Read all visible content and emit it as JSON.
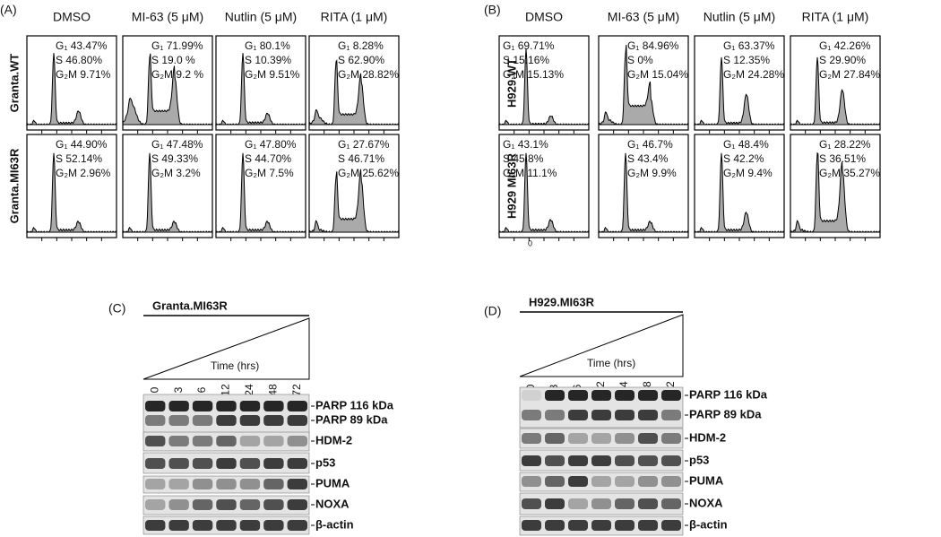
{
  "panels": [
    {
      "label": "(A)",
      "columns": [
        "DMSO",
        "MI-63 (5 μM)",
        "Nutlin (5 μM)",
        "RITA (1 μM)"
      ],
      "rows": [
        {
          "label": "Granta.WT",
          "cells": [
            [
              "G₁ 43.47%",
              "S 46.80%",
              "G₂M 9.71%"
            ],
            [
              "G₁ 71.99%",
              "S 19.0 %",
              "G₂M 9.2 %"
            ],
            [
              "G₁ 80.1%",
              "S 10.39%",
              "G₂M 9.51%"
            ],
            [
              "G₁ 8.28%",
              "S 62.90%",
              "G₂M 28.82%"
            ]
          ]
        },
        {
          "label": "Granta.MI63R",
          "cells": [
            [
              "G₁ 44.90%",
              "S 52.14%",
              "G₂M 2.96%"
            ],
            [
              "G₁ 47.48%",
              "S 49.33%",
              "G₂M 3.2%"
            ],
            [
              "G₁ 47.80%",
              "S 44.70%",
              "G₂M 7.5%"
            ],
            [
              "G₁ 27.67%",
              "S 46.71%",
              "G₂M 25.62%"
            ]
          ]
        }
      ]
    },
    {
      "label": "(B)",
      "columns": [
        "DMSO",
        "MI-63 (5 μM)",
        "Nutlin (5 μM)",
        "RITA (1 μM)"
      ],
      "rows": [
        {
          "label": "H929.WT",
          "cells": [
            [
              "G₁ 69.71%",
              "S 15.16%",
              "G₂M 15.13%"
            ],
            [
              "G₁ 84.96%",
              "S 0%",
              "G₂M 15.04%"
            ],
            [
              "G₁ 63.37%",
              "S 12.35%",
              "G₂M 24.28%"
            ],
            [
              "G₁ 42.26%",
              "S 29.90%",
              "G₂M 27.84%"
            ]
          ]
        },
        {
          "label": "H929 MI63R",
          "cells": [
            [
              "G₁ 43.1%",
              "S 45.8%",
              "G₂M 11.1%"
            ],
            [
              "G₁ 46.7%",
              "S 43.4%",
              "G₂M 9.9%"
            ],
            [
              "G₁ 48.4%",
              "S 42.2%",
              "G₂M 9.4%"
            ],
            [
              "G₁ 28.22%",
              "S 36.51%",
              "G₂M 35.27%"
            ]
          ]
        }
      ]
    }
  ],
  "axis_note": "0",
  "blots": [
    {
      "label": "(C)",
      "cell_line": "Granta.MI63R",
      "time_label": "Time (hrs)",
      "lanes": [
        "0",
        "3",
        "6",
        "12",
        "24",
        "48",
        "72"
      ],
      "bands": [
        "PARP 116 kDa",
        "PARP 89 kDa",
        "HDM-2",
        "p53",
        "PUMA",
        "NOXA",
        "β-actin"
      ]
    },
    {
      "label": "(D)",
      "cell_line": "H929.MI63R",
      "time_label": "Time (hrs)",
      "lanes": [
        "0",
        "3",
        "6",
        "12",
        "24",
        "48",
        "72"
      ],
      "bands": [
        "PARP 116 kDa",
        "PARP 89 kDa",
        "HDM-2",
        "p53",
        "PUMA",
        "NOXA",
        "β-actin"
      ]
    }
  ]
}
